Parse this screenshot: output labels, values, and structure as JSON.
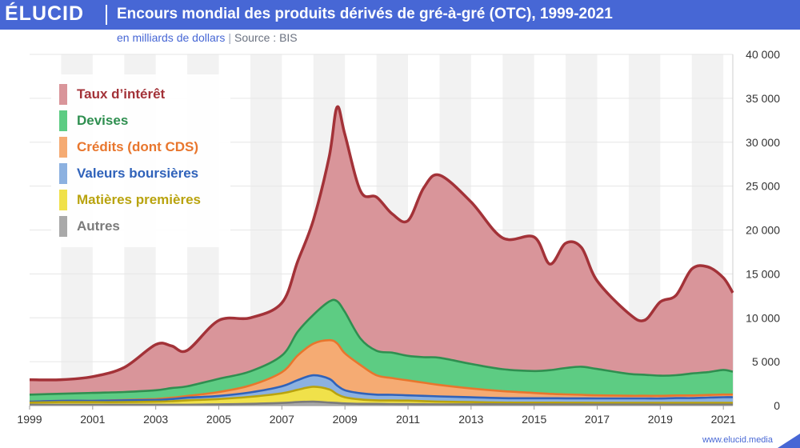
{
  "header": {
    "logo": "ÉLUCID",
    "title": "Encours mondial des produits dérivés de gré-à-gré (OTC), 1999-2021",
    "subtitle_unit": "en milliards de dollars",
    "subtitle_sep": "|",
    "subtitle_source": "Source : BIS"
  },
  "footer": {
    "url": "www.elucid.media"
  },
  "colors": {
    "brand": "#4767d5",
    "grid": "#e6e6e6",
    "band": "#f2f2f2",
    "axis_text": "#333333"
  },
  "chart_data": {
    "type": "area",
    "stacked": true,
    "x_tick_labels": [
      "1999",
      "2001",
      "2003",
      "2005",
      "2007",
      "2009",
      "2011",
      "2013",
      "2015",
      "2017",
      "2019",
      "2021"
    ],
    "y_tick_labels": [
      "0",
      "5 000",
      "10 000",
      "15 000",
      "20 000",
      "25 000",
      "30 000",
      "35 000",
      "40 000"
    ],
    "x_range": [
      1999,
      2021.3
    ],
    "ylim": [
      0,
      40000
    ],
    "grid": true,
    "legend_position": "top-left",
    "x": [
      1999.0,
      2000.0,
      2001.0,
      2002.0,
      2003.0,
      2003.5,
      2004.0,
      2005.0,
      2006.0,
      2007.0,
      2007.5,
      2008.0,
      2008.5,
      2008.75,
      2009.0,
      2009.5,
      2010.0,
      2010.5,
      2011.0,
      2011.5,
      2012.0,
      2013.0,
      2014.0,
      2015.0,
      2015.5,
      2016.0,
      2016.5,
      2017.0,
      2018.0,
      2018.5,
      2019.0,
      2019.5,
      2020.0,
      2020.5,
      2021.0,
      2021.3
    ],
    "series": [
      {
        "name": "Autres",
        "color": "#a9a9a9",
        "line": "#7b7b7b",
        "values": [
          100,
          100,
          100,
          100,
          100,
          100,
          100,
          150,
          200,
          300,
          400,
          450,
          350,
          300,
          250,
          200,
          200,
          180,
          170,
          160,
          150,
          150,
          150,
          140,
          140,
          130,
          130,
          120,
          120,
          120,
          110,
          110,
          110,
          110,
          110,
          110
        ]
      },
      {
        "name": "Matières premières",
        "color": "#f0e14a",
        "line": "#b9a30e",
        "values": [
          250,
          300,
          300,
          300,
          350,
          400,
          500,
          600,
          800,
          1100,
          1400,
          1700,
          1500,
          1000,
          700,
          500,
          400,
          400,
          400,
          350,
          300,
          250,
          200,
          200,
          200,
          200,
          200,
          200,
          200,
          200,
          200,
          200,
          200,
          200,
          200,
          200
        ]
      },
      {
        "name": "Valeurs boursières",
        "color": "#8cb1e0",
        "line": "#2f62ba",
        "values": [
          100,
          150,
          150,
          200,
          200,
          250,
          300,
          350,
          500,
          800,
          1100,
          1300,
          1200,
          1000,
          800,
          700,
          650,
          650,
          600,
          600,
          600,
          550,
          500,
          500,
          500,
          500,
          500,
          500,
          500,
          500,
          500,
          550,
          550,
          600,
          650,
          650
        ]
      },
      {
        "name": "Crédits (dont CDS)",
        "color": "#f5ab73",
        "line": "#e8762d",
        "values": [
          0,
          0,
          0,
          50,
          100,
          150,
          200,
          450,
          800,
          1600,
          2800,
          3600,
          4400,
          4800,
          4200,
          3200,
          2200,
          1900,
          1700,
          1500,
          1300,
          1000,
          800,
          600,
          500,
          450,
          400,
          350,
          300,
          300,
          300,
          300,
          300,
          300,
          300,
          300
        ]
      },
      {
        "name": "Devises",
        "color": "#5dcc83",
        "line": "#2f8f50",
        "values": [
          800,
          800,
          900,
          900,
          1000,
          1100,
          1100,
          1500,
          1600,
          1900,
          2700,
          3300,
          4400,
          4800,
          4700,
          3000,
          2800,
          2900,
          2800,
          2900,
          3100,
          2800,
          2500,
          2500,
          2700,
          3000,
          3200,
          3000,
          2500,
          2400,
          2300,
          2300,
          2500,
          2600,
          2800,
          2600
        ]
      },
      {
        "name": "Taux d’intérêt",
        "color": "#d9959a",
        "line": "#a33238",
        "values": [
          1700,
          1600,
          1850,
          2800,
          5200,
          4800,
          4100,
          6650,
          6100,
          6000,
          8000,
          10800,
          16500,
          22100,
          20200,
          16800,
          17500,
          15800,
          15400,
          19300,
          20800,
          18450,
          14950,
          15260,
          12080,
          14220,
          13570,
          10030,
          6880,
          6200,
          8400,
          9100,
          11900,
          12000,
          10500,
          9000
        ]
      }
    ]
  }
}
